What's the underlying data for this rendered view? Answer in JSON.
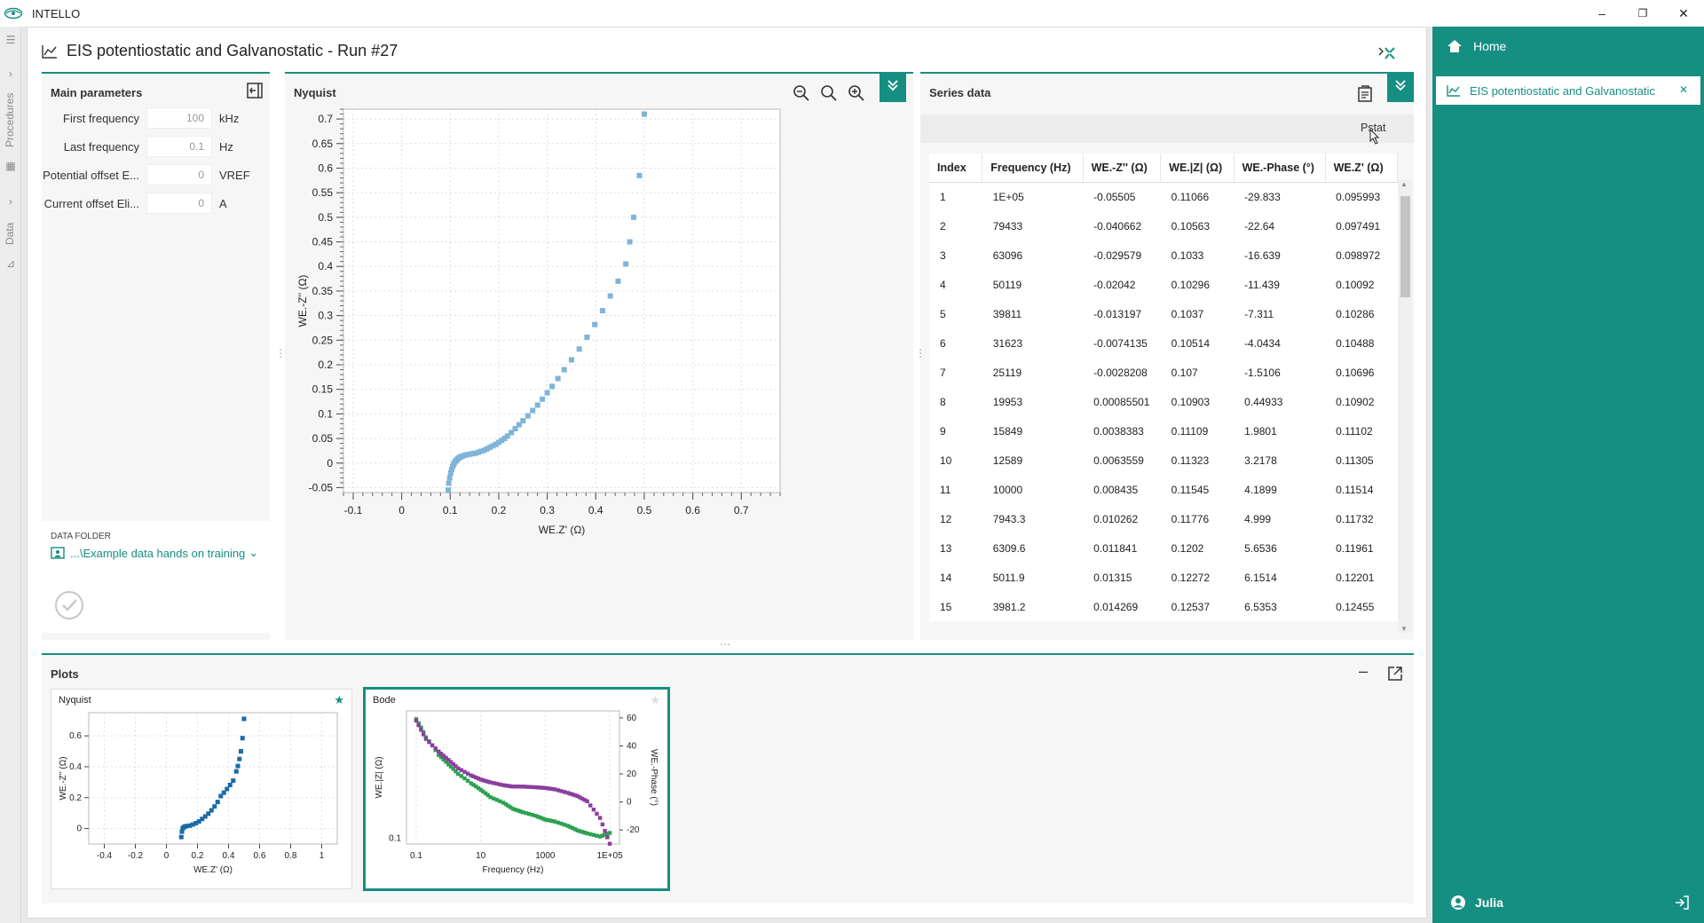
{
  "app": {
    "title": "INTELLO"
  },
  "window": {
    "minimize": "–",
    "restore": "❐",
    "close": "✕"
  },
  "rail": {
    "procedures": "Procedures",
    "data": "Data"
  },
  "page": {
    "title": "EIS potentiostatic and Galvanostatic - Run #27"
  },
  "main_params": {
    "title": "Main parameters",
    "rows": [
      {
        "label": "First frequency",
        "value": "100",
        "unit": "kHz"
      },
      {
        "label": "Last frequency",
        "value": "0.1",
        "unit": "Hz"
      },
      {
        "label": "Potential offset E...",
        "value": "0",
        "unit": "VREF"
      },
      {
        "label": "Current offset Eli...",
        "value": "0",
        "unit": "A"
      }
    ],
    "data_folder_label": "DATA FOLDER",
    "data_folder_value": "...\\Example data hands on training"
  },
  "nyquist": {
    "title": "Nyquist",
    "xlabel": "WE.Z' (Ω)",
    "ylabel": "WE.-Z'' (Ω)",
    "xticks": [
      "-0.1",
      "0",
      "0.1",
      "0.2",
      "0.3",
      "0.4",
      "0.5",
      "0.6",
      "0.7"
    ],
    "yticks": [
      "0.7",
      "0.65",
      "0.6",
      "0.55",
      "0.5",
      "0.45",
      "0.4",
      "0.35",
      "0.3",
      "0.25",
      "0.2",
      "0.15",
      "0.1",
      "0.05",
      "0",
      "-0.05"
    ]
  },
  "series": {
    "title": "Series data",
    "filter": "Pstat",
    "columns": [
      "Index",
      "Frequency (Hz)",
      "WE.-Z'' (Ω)",
      "WE.|Z| (Ω)",
      "WE.-Phase (°)",
      "WE.Z' (Ω)"
    ],
    "rows": [
      [
        "1",
        "1E+05",
        "-0.05505",
        "0.11066",
        "-29.833",
        "0.095993"
      ],
      [
        "2",
        "79433",
        "-0.040662",
        "0.10563",
        "-22.64",
        "0.097491"
      ],
      [
        "3",
        "63096",
        "-0.029579",
        "0.1033",
        "-16.639",
        "0.098972"
      ],
      [
        "4",
        "50119",
        "-0.02042",
        "0.10296",
        "-11.439",
        "0.10092"
      ],
      [
        "5",
        "39811",
        "-0.013197",
        "0.1037",
        "-7.311",
        "0.10286"
      ],
      [
        "6",
        "31623",
        "-0.0074135",
        "0.10514",
        "-4.0434",
        "0.10488"
      ],
      [
        "7",
        "25119",
        "-0.0028208",
        "0.107",
        "-1.5106",
        "0.10696"
      ],
      [
        "8",
        "19953",
        "0.00085501",
        "0.10903",
        "0.44933",
        "0.10902"
      ],
      [
        "9",
        "15849",
        "0.0038383",
        "0.11109",
        "1.9801",
        "0.11102"
      ],
      [
        "10",
        "12589",
        "0.0063559",
        "0.11323",
        "3.2178",
        "0.11305"
      ],
      [
        "11",
        "10000",
        "0.008435",
        "0.11545",
        "4.1899",
        "0.11514"
      ],
      [
        "12",
        "7943.3",
        "0.010262",
        "0.11776",
        "4.999",
        "0.11732"
      ],
      [
        "13",
        "6309.6",
        "0.011841",
        "0.1202",
        "5.6536",
        "0.11961"
      ],
      [
        "14",
        "5011.9",
        "0.01315",
        "0.12272",
        "6.1514",
        "0.12201"
      ],
      [
        "15",
        "3981.2",
        "0.014269",
        "0.12537",
        "6.5353",
        "0.12455"
      ]
    ]
  },
  "plots": {
    "title": "Plots",
    "minimize": "–",
    "nyquist_card": {
      "title": "Nyquist",
      "xlabel": "WE.Z' (Ω)",
      "ylabel": "WE.-Z'' (Ω)",
      "xticks": [
        "-0.4",
        "-0.2",
        "0",
        "0.2",
        "0.4",
        "0.6",
        "0.8",
        "1"
      ],
      "yticks": [
        "0.6",
        "0.4",
        "0.2",
        "0"
      ]
    },
    "bode_card": {
      "title": "Bode",
      "xlabel": "Frequency (Hz)",
      "ylabel_left": "WE.|Z| (Ω)",
      "ylabel_right": "WE.-Phase (°)",
      "xticks": [
        "0.1",
        "10",
        "1000",
        "1E+05"
      ],
      "yticks_left": [
        "0.1"
      ],
      "yticks_right": [
        "60",
        "40",
        "20",
        "0",
        "-20"
      ]
    }
  },
  "right_panel": {
    "home": "Home",
    "tab": "EIS potentiostatic and Galvanostatic",
    "tab_close": "✕",
    "user": "Julia"
  },
  "colors": {
    "accent": "#168f83",
    "nyquist_points": "#7fb4d8",
    "mini_points": "#1a6aa6",
    "bode_mag": "#2ea050",
    "bode_phase": "#8a3f9e"
  },
  "chart_data": [
    {
      "type": "scatter",
      "title": "Nyquist",
      "xlabel": "WE.Z' (Ω)",
      "ylabel": "WE.-Z'' (Ω)",
      "xlim": [
        -0.12,
        0.78
      ],
      "ylim": [
        -0.06,
        0.72
      ],
      "x": [
        0.096,
        0.097,
        0.099,
        0.101,
        0.103,
        0.105,
        0.107,
        0.109,
        0.111,
        0.113,
        0.115,
        0.117,
        0.12,
        0.122,
        0.125,
        0.13,
        0.135,
        0.14,
        0.146,
        0.152,
        0.158,
        0.164,
        0.17,
        0.176,
        0.182,
        0.188,
        0.194,
        0.2,
        0.206,
        0.212,
        0.218,
        0.226,
        0.234,
        0.242,
        0.25,
        0.26,
        0.27,
        0.28,
        0.29,
        0.3,
        0.31,
        0.322,
        0.335,
        0.35,
        0.366,
        0.382,
        0.398,
        0.414,
        0.43,
        0.446,
        0.462,
        0.47,
        0.478,
        0.49,
        0.5
      ],
      "y": [
        -0.055,
        -0.041,
        -0.03,
        -0.02,
        -0.013,
        -0.007,
        -0.003,
        0.001,
        0.004,
        0.006,
        0.008,
        0.01,
        0.012,
        0.013,
        0.014,
        0.016,
        0.017,
        0.018,
        0.019,
        0.02,
        0.022,
        0.024,
        0.026,
        0.029,
        0.032,
        0.035,
        0.038,
        0.042,
        0.046,
        0.05,
        0.055,
        0.062,
        0.07,
        0.078,
        0.086,
        0.096,
        0.107,
        0.118,
        0.13,
        0.143,
        0.156,
        0.172,
        0.19,
        0.21,
        0.232,
        0.256,
        0.282,
        0.31,
        0.34,
        0.37,
        0.405,
        0.45,
        0.5,
        0.585,
        0.71
      ]
    },
    {
      "type": "scatter",
      "title": "Nyquist",
      "xlabel": "WE.Z' (Ω)",
      "ylabel": "WE.-Z'' (Ω)",
      "xlim": [
        -0.5,
        1.1
      ],
      "ylim": [
        -0.1,
        0.75
      ],
      "x": [
        0.096,
        0.1,
        0.105,
        0.11,
        0.12,
        0.13,
        0.15,
        0.17,
        0.19,
        0.21,
        0.23,
        0.25,
        0.27,
        0.29,
        0.31,
        0.33,
        0.35,
        0.37,
        0.39,
        0.41,
        0.43,
        0.45,
        0.46,
        0.47,
        0.48,
        0.49,
        0.5
      ],
      "y": [
        -0.055,
        -0.02,
        0.0,
        0.008,
        0.013,
        0.016,
        0.019,
        0.026,
        0.035,
        0.046,
        0.062,
        0.078,
        0.096,
        0.118,
        0.143,
        0.172,
        0.21,
        0.232,
        0.256,
        0.282,
        0.31,
        0.37,
        0.405,
        0.45,
        0.5,
        0.585,
        0.71
      ]
    },
    {
      "type": "scatter",
      "title": "Bode",
      "xlabel": "Frequency (Hz)",
      "ylabel": "WE.|Z| (Ω)",
      "xscale": "log",
      "xlim": [
        0.05,
        200000
      ],
      "series": [
        {
          "name": "WE.|Z| (Ω)",
          "x": [
            0.1,
            0.2,
            0.5,
            1,
            2,
            5,
            10,
            20,
            50,
            100,
            200,
            500,
            1000,
            2000,
            5000,
            10000,
            20000,
            50000,
            100000
          ],
          "y": [
            0.86,
            0.62,
            0.45,
            0.38,
            0.32,
            0.27,
            0.24,
            0.21,
            0.19,
            0.17,
            0.16,
            0.15,
            0.14,
            0.135,
            0.125,
            0.115,
            0.109,
            0.103,
            0.11
          ]
        },
        {
          "name": "WE.-Phase (°)",
          "x": [
            0.1,
            0.2,
            0.5,
            1,
            2,
            5,
            10,
            20,
            50,
            100,
            200,
            500,
            1000,
            2000,
            5000,
            10000,
            20000,
            50000,
            100000
          ],
          "y": [
            58,
            45,
            36,
            30,
            24,
            19,
            16,
            14,
            12,
            11,
            11,
            10.5,
            10,
            9,
            6.5,
            4.2,
            0.5,
            -11.4,
            -29.8
          ]
        }
      ],
      "ylim_right": [
        -30,
        65
      ]
    }
  ]
}
